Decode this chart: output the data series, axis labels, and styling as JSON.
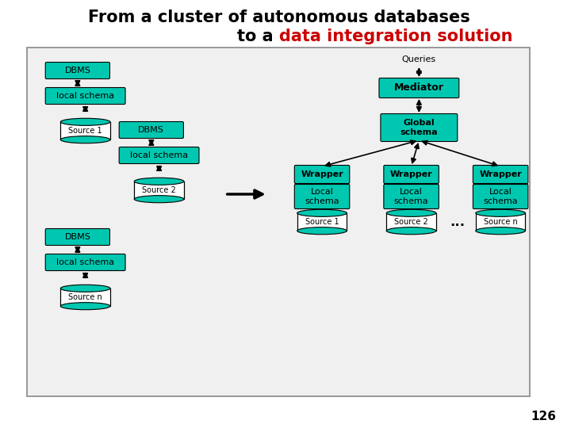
{
  "title_line1": "From a cluster of autonomous databases",
  "title_line2_prefix": "to a ",
  "title_line2_highlight": "data integration solution",
  "title_color": "#000000",
  "title_highlight_color": "#cc0000",
  "box_color": "#00c8b0",
  "box_edge_color": "#000000",
  "db_fill": "#ffffff",
  "db_teal": "#00c8b0",
  "arrow_color": "#000000",
  "bg_color": "#ffffff",
  "panel_bg": "#f0f0f0",
  "page_num": "126"
}
